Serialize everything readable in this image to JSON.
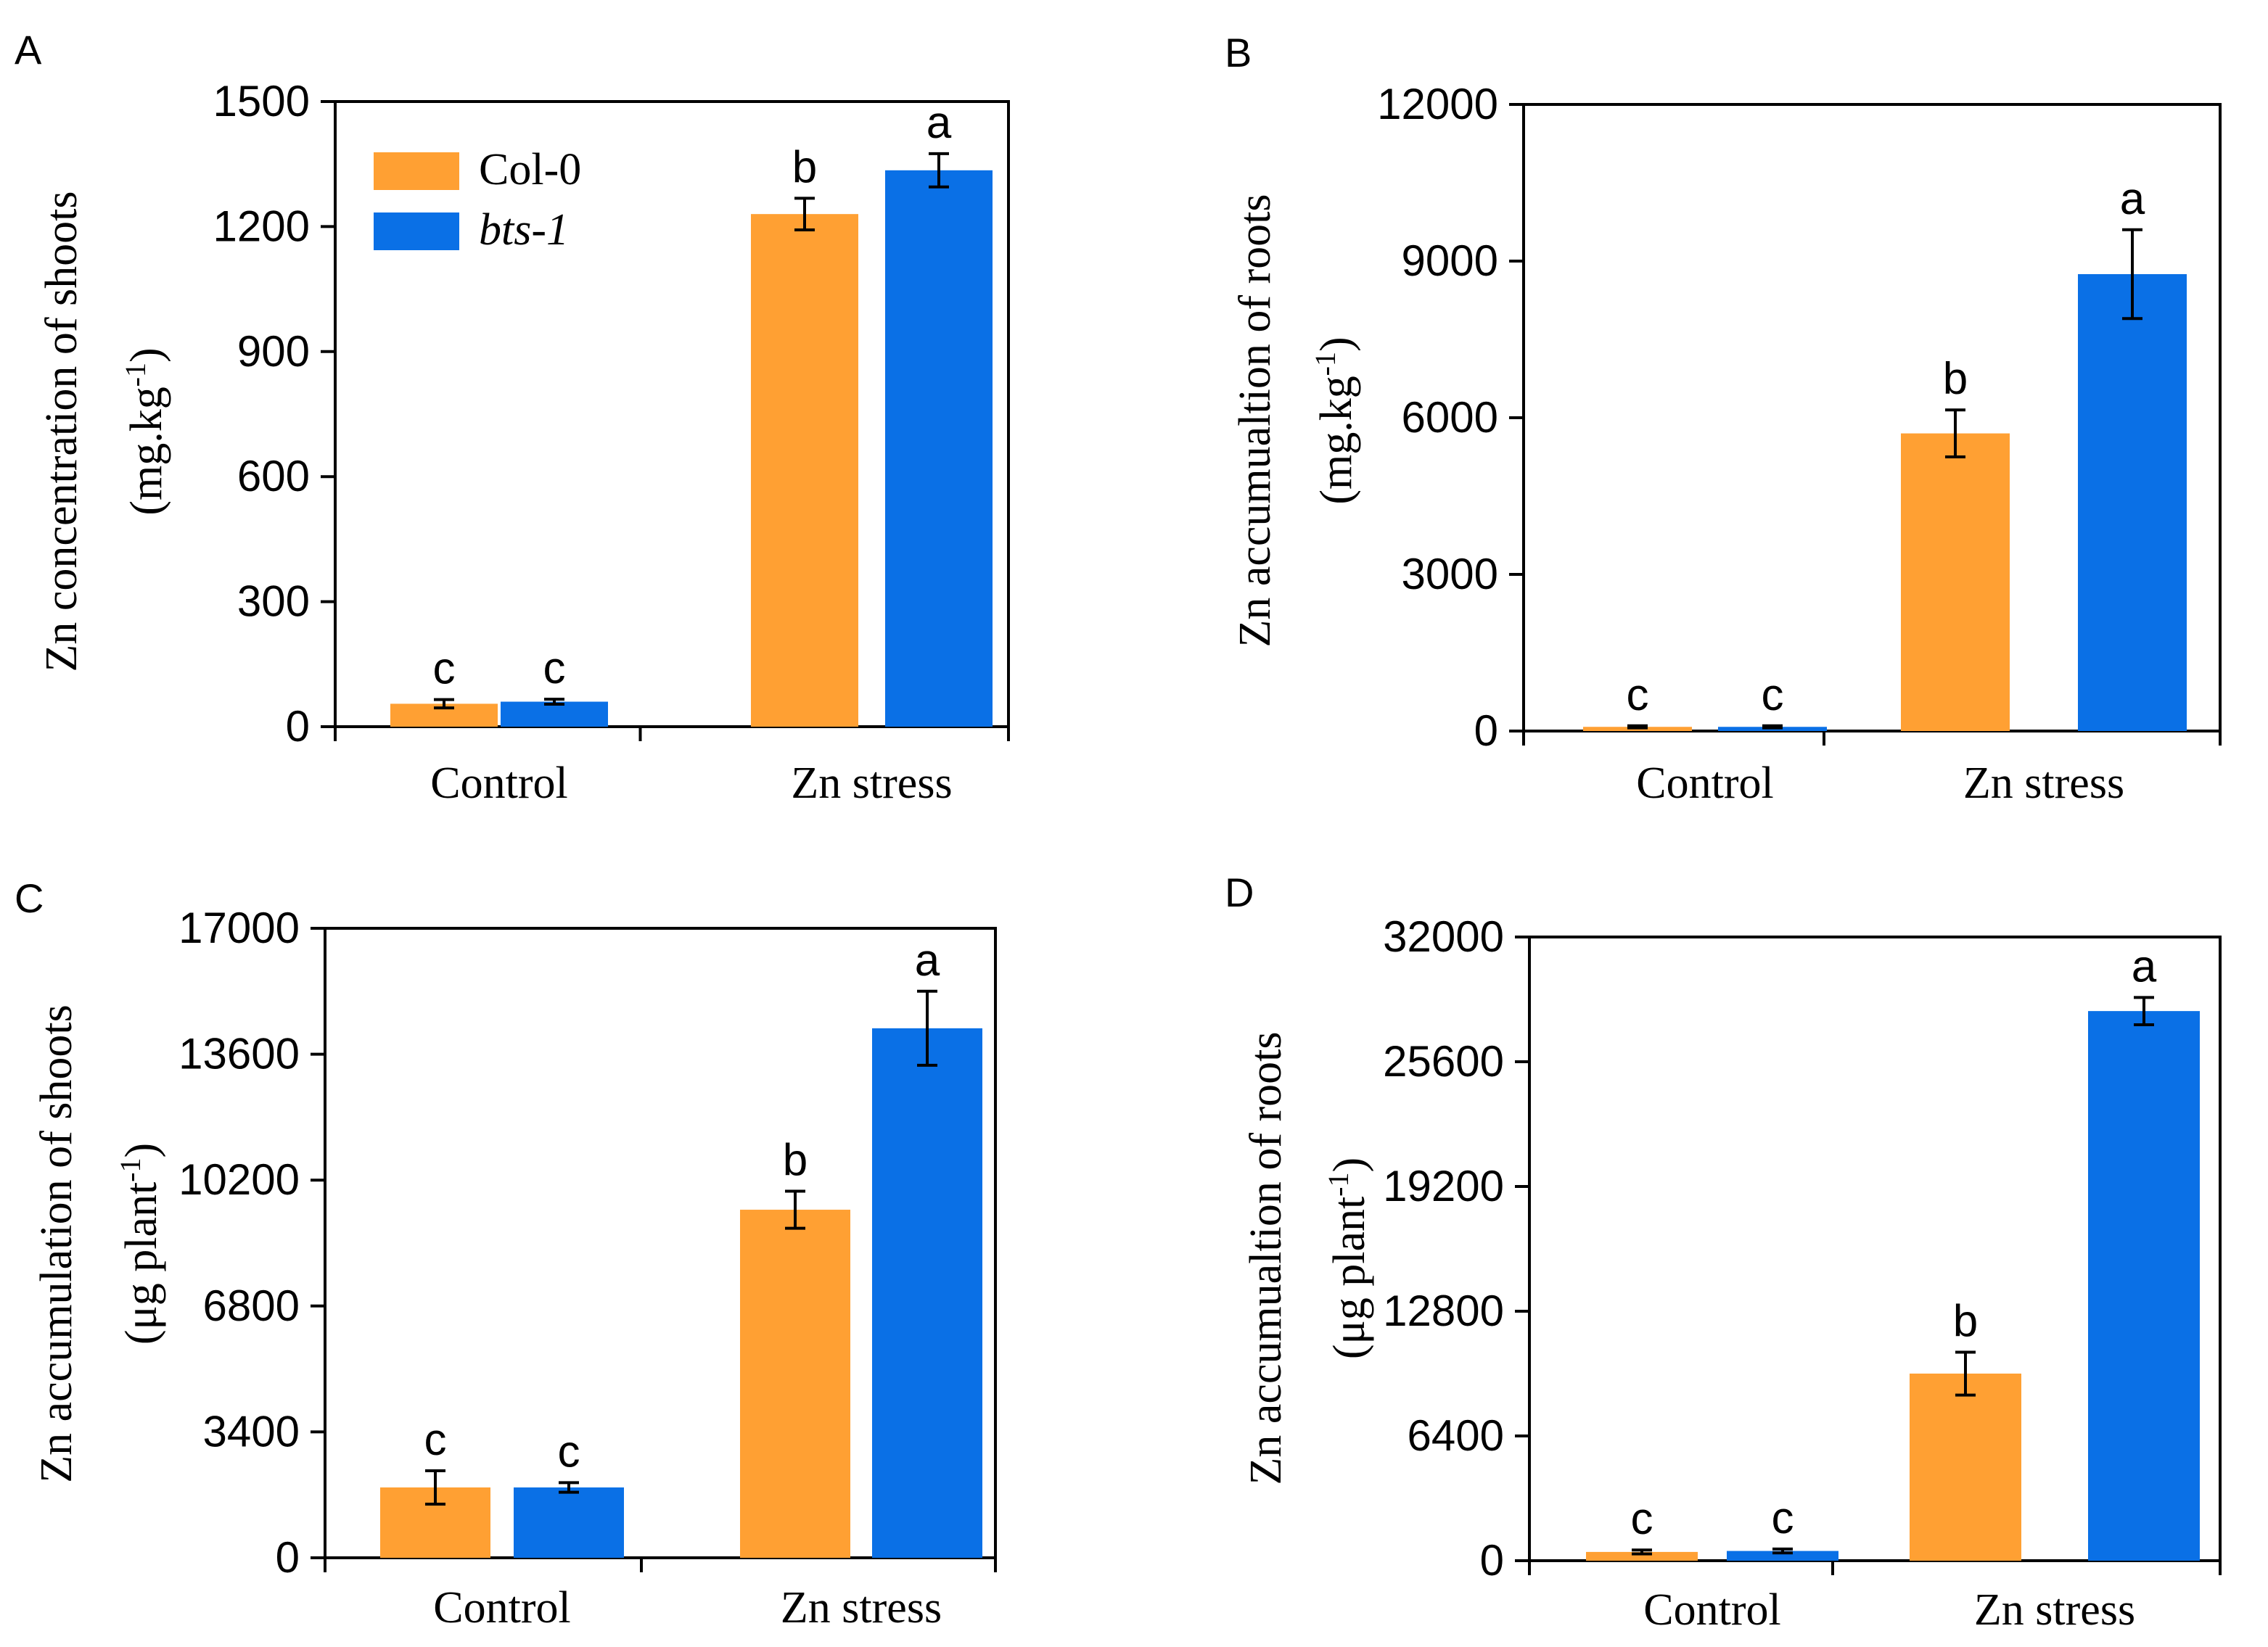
{
  "colors": {
    "col0": "#FFA033",
    "bts1": "#0A70E6"
  },
  "legend": {
    "col0": "Col-0",
    "bts1": "bts-1"
  },
  "chart_data": [
    {
      "type": "bar",
      "panel": "A",
      "ylabel": "Zn concentration of shoots",
      "yunit_main": "(mg.kg",
      "yunit_sup": "-1",
      "yunit_tail": ")",
      "categories": [
        "Control",
        "Zn stress"
      ],
      "ylim": [
        0,
        1500
      ],
      "yticks": [
        0,
        300,
        600,
        900,
        1200,
        1500
      ],
      "ytick_labels": [
        "0",
        "300",
        "600",
        "900",
        "1200",
        "1500"
      ],
      "legend": true,
      "series": [
        {
          "name": "Col-0",
          "values": [
            55,
            1230
          ],
          "errors": [
            10,
            38
          ],
          "letters": [
            "c",
            "b"
          ]
        },
        {
          "name": "bts-1",
          "values": [
            60,
            1335
          ],
          "errors": [
            6,
            40
          ],
          "letters": [
            "c",
            "a"
          ]
        }
      ]
    },
    {
      "type": "bar",
      "panel": "B",
      "ylabel": "Zn accumualtion of roots",
      "yunit_main": "(mg.kg",
      "yunit_sup": "-1",
      "yunit_tail": ")",
      "categories": [
        "Control",
        "Zn stress"
      ],
      "ylim": [
        0,
        12000
      ],
      "yticks": [
        0,
        3000,
        6000,
        9000,
        12000
      ],
      "ytick_labels": [
        "0",
        "3000",
        "6000",
        "9000",
        "12000"
      ],
      "legend": false,
      "series": [
        {
          "name": "Col-0",
          "values": [
            80,
            5700
          ],
          "errors": [
            20,
            450
          ],
          "letters": [
            "c",
            "b"
          ]
        },
        {
          "name": "bts-1",
          "values": [
            80,
            8750
          ],
          "errors": [
            20,
            850
          ],
          "letters": [
            "c",
            "a"
          ]
        }
      ]
    },
    {
      "type": "bar",
      "panel": "C",
      "ylabel": "Zn accumulation of shoots",
      "yunit_main": "(μg plant",
      "yunit_sup": "-1",
      "yunit_tail": ")",
      "categories": [
        "Control",
        "Zn stress"
      ],
      "ylim": [
        0,
        17000
      ],
      "yticks": [
        0,
        3400,
        6800,
        10200,
        13600,
        17000
      ],
      "ytick_labels": [
        "0",
        "3400",
        "6800",
        "10200",
        "13600",
        "17000"
      ],
      "legend": false,
      "series": [
        {
          "name": "Col-0",
          "values": [
            1900,
            9400
          ],
          "errors": [
            450,
            500
          ],
          "letters": [
            "c",
            "b"
          ]
        },
        {
          "name": "bts-1",
          "values": [
            1900,
            14300
          ],
          "errors": [
            130,
            1000
          ],
          "letters": [
            "c",
            "a"
          ]
        }
      ]
    },
    {
      "type": "bar",
      "panel": "D",
      "ylabel": "Zn accumualtion of roots",
      "yunit_main": "(μg plant",
      "yunit_sup": "-1",
      "yunit_tail": ")",
      "categories": [
        "Control",
        "Zn stress"
      ],
      "ylim": [
        0,
        32000
      ],
      "yticks": [
        0,
        6400,
        12800,
        19200,
        25600,
        32000
      ],
      "ytick_labels": [
        "0",
        "6400",
        "12800",
        "19200",
        "25600",
        "32000"
      ],
      "legend": false,
      "series": [
        {
          "name": "Col-0",
          "values": [
            450,
            9600
          ],
          "errors": [
            100,
            1100
          ],
          "letters": [
            "c",
            "b"
          ]
        },
        {
          "name": "bts-1",
          "values": [
            500,
            28200
          ],
          "errors": [
            100,
            700
          ],
          "letters": [
            "c",
            "a"
          ]
        }
      ]
    }
  ]
}
